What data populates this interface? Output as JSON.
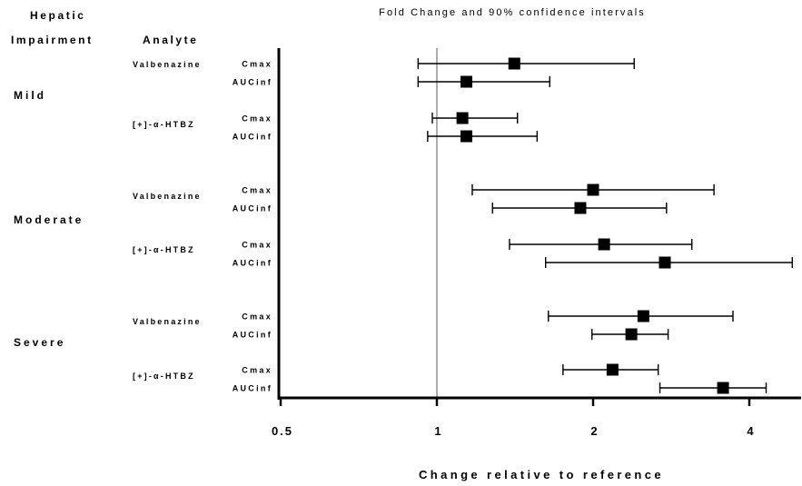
{
  "header": {
    "col1_line1": "Hepatic",
    "col1_line2": "Impairment",
    "col2": "Analyte"
  },
  "chart_data": {
    "type": "forest",
    "title": "Fold Change and 90% confidence intervals",
    "xlabel": "Change relative to reference",
    "x_scale": "log2",
    "xlim": [
      0.5,
      5
    ],
    "x_ticks": [
      0.5,
      1,
      2,
      4
    ],
    "x_tick_labels": [
      "0.5",
      "1",
      "2",
      "4"
    ],
    "reference_line": 1,
    "groups": [
      {
        "name": "Mild",
        "analytes": [
          {
            "name": "Valbenazine",
            "rows": [
              {
                "metric": "Cmax",
                "estimate": 1.41,
                "lower": 0.92,
                "upper": 2.4
              },
              {
                "metric": "AUCinf",
                "estimate": 1.14,
                "lower": 0.92,
                "upper": 1.65
              }
            ]
          },
          {
            "name": "[+]-α-HTBZ",
            "rows": [
              {
                "metric": "Cmax",
                "estimate": 1.12,
                "lower": 0.98,
                "upper": 1.43
              },
              {
                "metric": "AUCinf",
                "estimate": 1.14,
                "lower": 0.96,
                "upper": 1.56
              }
            ]
          }
        ]
      },
      {
        "name": "Moderate",
        "analytes": [
          {
            "name": "Valbenazine",
            "rows": [
              {
                "metric": "Cmax",
                "estimate": 2.0,
                "lower": 1.17,
                "upper": 3.42
              },
              {
                "metric": "AUCinf",
                "estimate": 1.89,
                "lower": 1.28,
                "upper": 2.77
              }
            ]
          },
          {
            "name": "[+]-α-HTBZ",
            "rows": [
              {
                "metric": "Cmax",
                "estimate": 2.1,
                "lower": 1.38,
                "upper": 3.1
              },
              {
                "metric": "AUCinf",
                "estimate": 2.75,
                "lower": 1.62,
                "upper": 4.84
              }
            ]
          }
        ]
      },
      {
        "name": "Severe",
        "analytes": [
          {
            "name": "Valbenazine",
            "rows": [
              {
                "metric": "Cmax",
                "estimate": 2.5,
                "lower": 1.64,
                "upper": 3.72
              },
              {
                "metric": "AUCinf",
                "estimate": 2.37,
                "lower": 1.99,
                "upper": 2.79
              }
            ]
          },
          {
            "name": "[+]-α-HTBZ",
            "rows": [
              {
                "metric": "Cmax",
                "estimate": 2.18,
                "lower": 1.75,
                "upper": 2.67
              },
              {
                "metric": "AUCinf",
                "estimate": 3.56,
                "lower": 2.69,
                "upper": 4.31
              }
            ]
          }
        ]
      }
    ]
  }
}
